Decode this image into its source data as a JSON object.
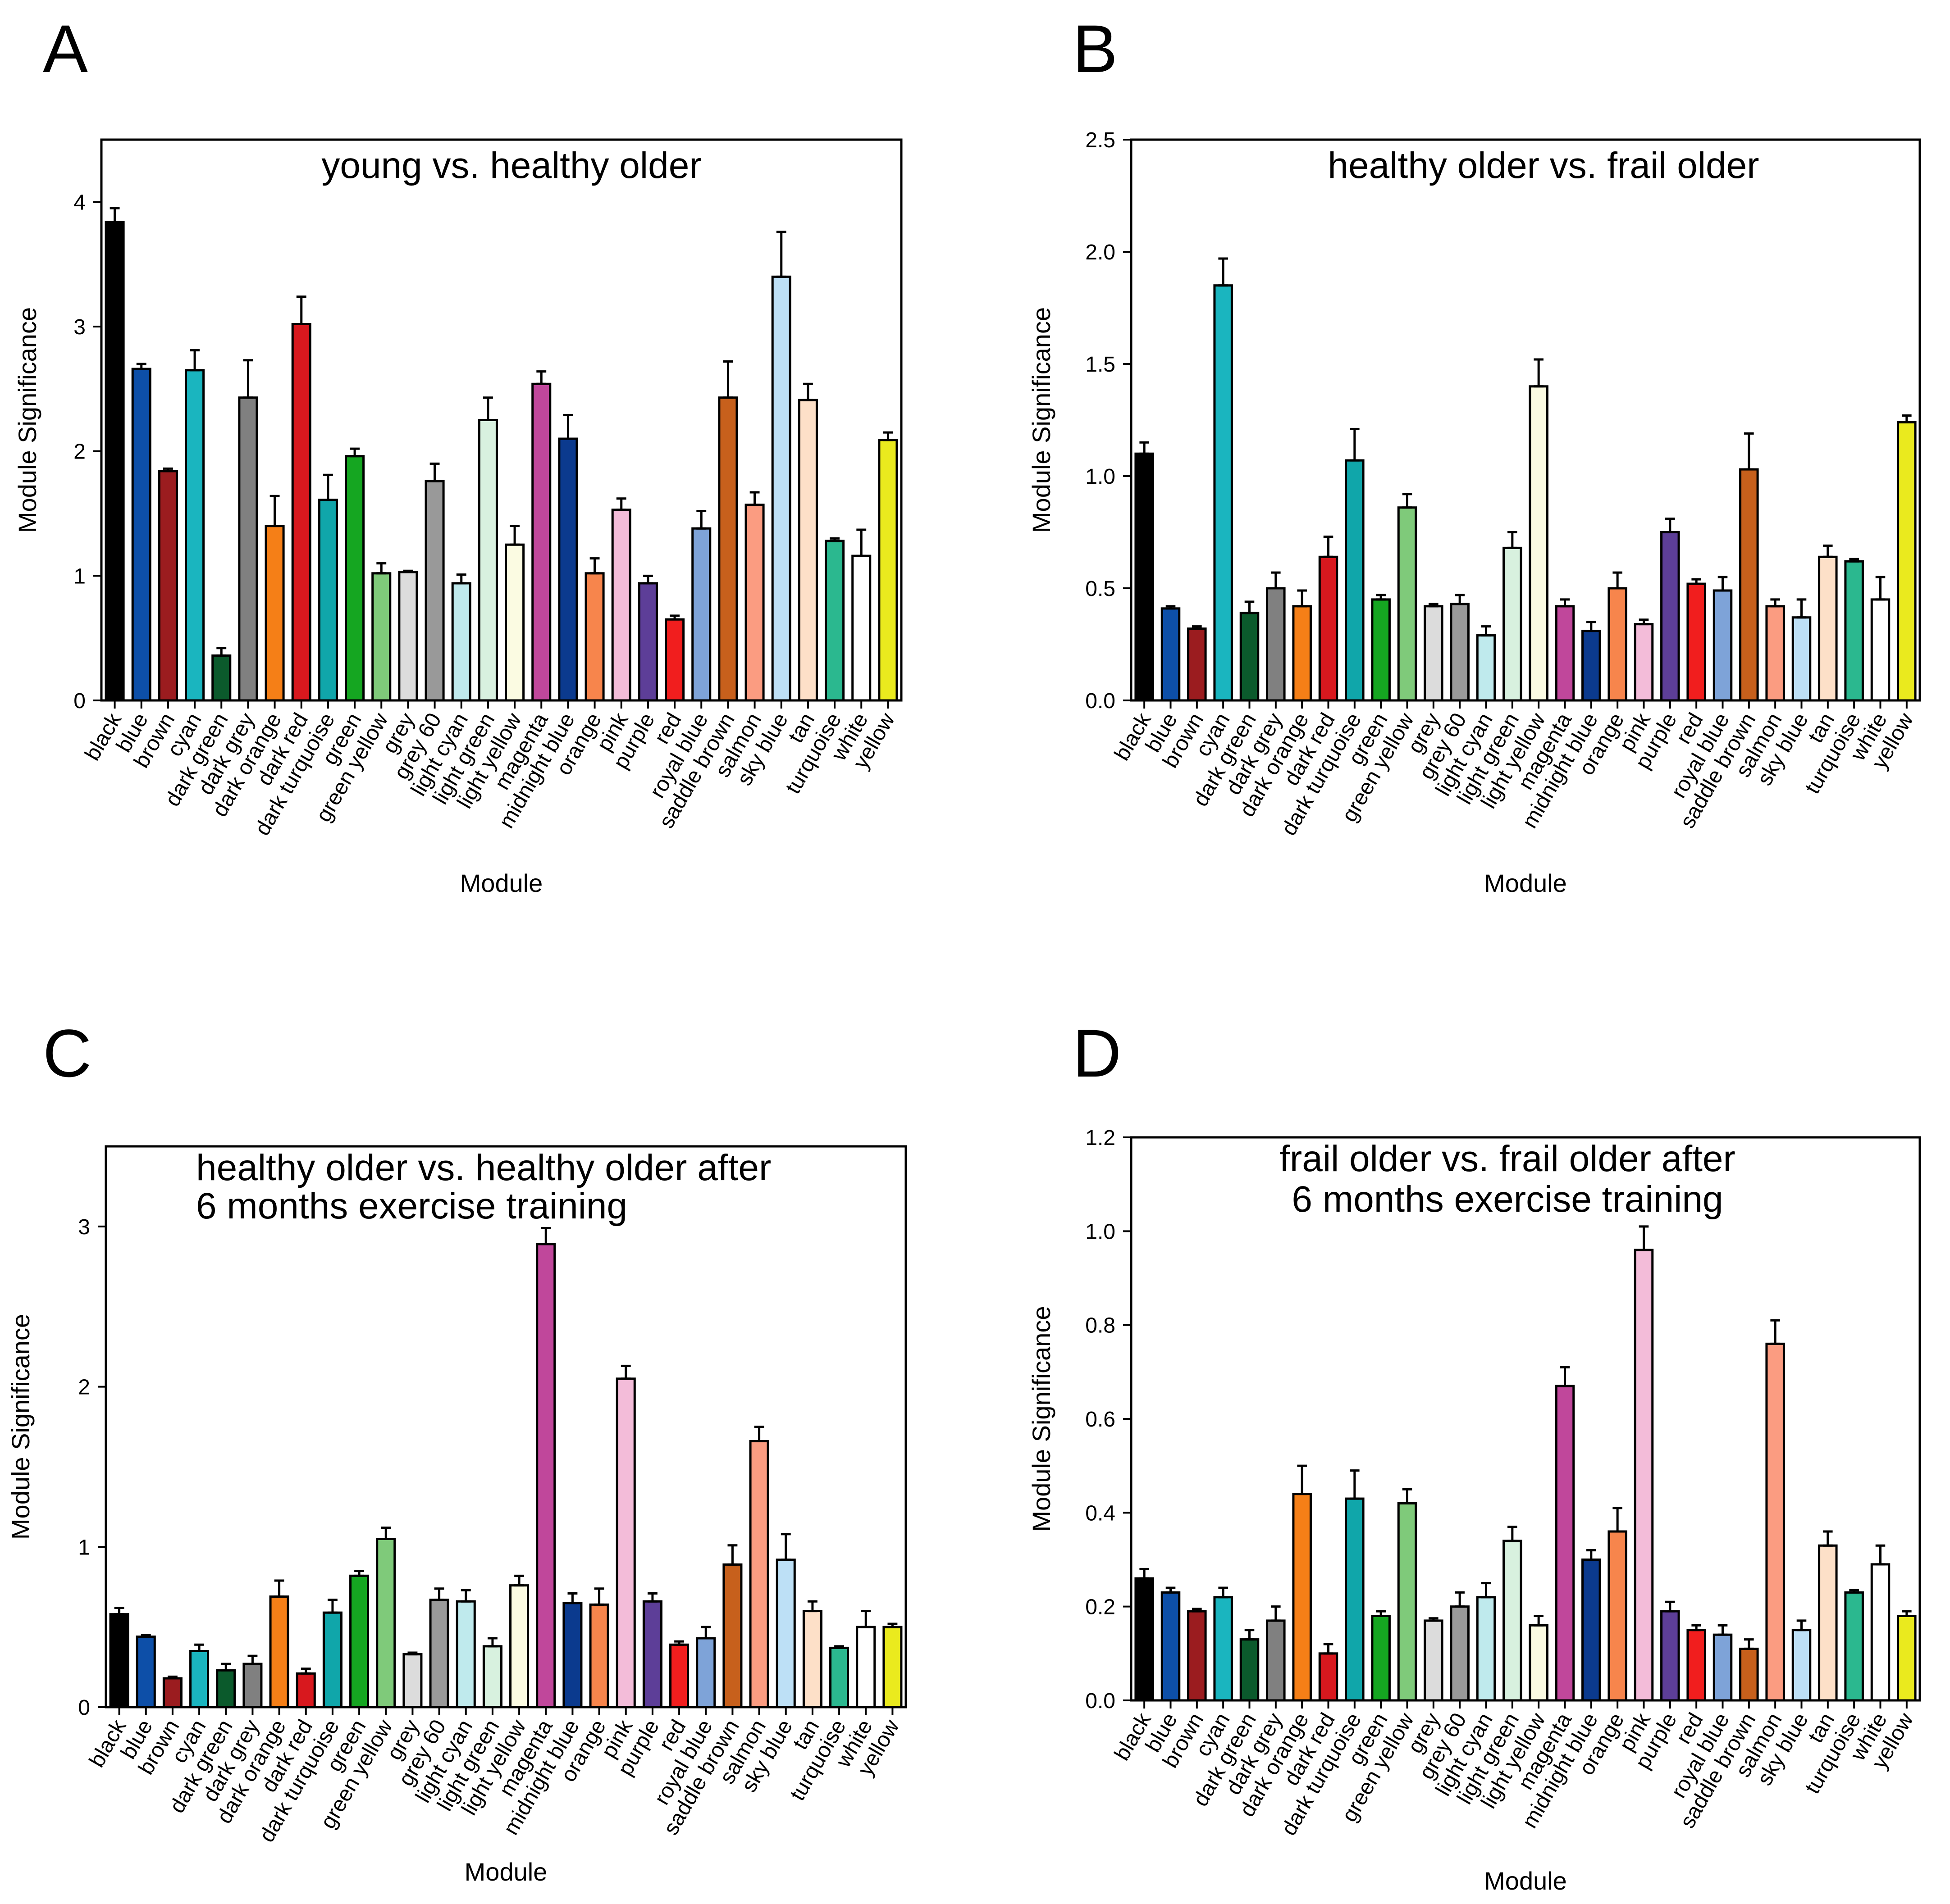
{
  "colors": {
    "black": "#000000",
    "blue": "#0d4fa8",
    "brown": "#9b1c1f",
    "cyan": "#1ab5bf",
    "dark green": "#0b5a2c",
    "dark grey": "#808080",
    "dark orange": "#f57f17",
    "dark red": "#d8181e",
    "dark turquoise": "#10a6aa",
    "green": "#15a621",
    "green yellow": "#7fca7a",
    "grey": "#dcdcdc",
    "grey 60": "#999999",
    "light cyan": "#bfeaed",
    "light green": "#d8f1df",
    "light yellow": "#fbfbe2",
    "magenta": "#c0479b",
    "midnight blue": "#0b3a8e",
    "orange": "#f7854c",
    "pink": "#f3bcd9",
    "purple": "#5d3e98",
    "red": "#f11e1e",
    "royal blue": "#7ea3d8",
    "saddle brown": "#c7601c",
    "salmon": "#fb9c81",
    "sky blue": "#bde0f6",
    "tan": "#fde0c8",
    "turquoise": "#2bb88f",
    "white": "#ffffff",
    "yellow": "#eaea1e"
  },
  "chart_data": [
    {
      "panel": "A",
      "type": "bar",
      "title": [
        "young vs. healthy older"
      ],
      "xlabel": "Module",
      "ylabel": "Module Significance",
      "ylim": [
        0,
        4.5
      ],
      "yticks": [
        "0",
        "1",
        "2",
        "3",
        "4"
      ],
      "ytick_values": [
        0,
        1,
        2,
        3,
        4
      ],
      "categories": [
        "black",
        "blue",
        "brown",
        "cyan",
        "dark green",
        "dark grey",
        "dark orange",
        "dark red",
        "dark turquoise",
        "green",
        "green yellow",
        "grey",
        "grey 60",
        "light cyan",
        "light green",
        "light yellow",
        "magenta",
        "midnight blue",
        "orange",
        "pink",
        "purple",
        "red",
        "royal blue",
        "saddle brown",
        "salmon",
        "sky blue",
        "tan",
        "turquoise",
        "white",
        "yellow"
      ],
      "values": [
        3.84,
        2.66,
        1.84,
        2.65,
        0.36,
        2.43,
        1.4,
        3.02,
        1.61,
        1.96,
        1.02,
        1.03,
        1.76,
        0.94,
        2.25,
        1.25,
        2.54,
        2.1,
        1.02,
        1.53,
        0.94,
        0.65,
        1.38,
        2.43,
        1.57,
        3.4,
        2.41,
        1.28,
        1.16,
        2.09
      ],
      "errors": [
        0.11,
        0.04,
        0.02,
        0.16,
        0.06,
        0.3,
        0.24,
        0.22,
        0.2,
        0.06,
        0.08,
        0.01,
        0.14,
        0.07,
        0.18,
        0.15,
        0.1,
        0.19,
        0.12,
        0.09,
        0.06,
        0.03,
        0.14,
        0.29,
        0.1,
        0.36,
        0.13,
        0.02,
        0.21,
        0.06
      ]
    },
    {
      "panel": "B",
      "type": "bar",
      "title": [
        "healthy older vs. frail older"
      ],
      "xlabel": "Module",
      "ylabel": "Module Significance",
      "ylim": [
        0,
        2.5
      ],
      "yticks": [
        "0.0",
        "0.5",
        "1.0",
        "1.5",
        "2.0",
        "2.5"
      ],
      "ytick_values": [
        0,
        0.5,
        1.0,
        1.5,
        2.0,
        2.5
      ],
      "categories": [
        "black",
        "blue",
        "brown",
        "cyan",
        "dark green",
        "dark grey",
        "dark orange",
        "dark red",
        "dark turquoise",
        "green",
        "green yellow",
        "grey",
        "grey 60",
        "light cyan",
        "light green",
        "light yellow",
        "magenta",
        "midnight blue",
        "orange",
        "pink",
        "purple",
        "red",
        "royal blue",
        "saddle brown",
        "salmon",
        "sky blue",
        "tan",
        "turquoise",
        "white",
        "yellow"
      ],
      "values": [
        1.1,
        0.41,
        0.32,
        1.85,
        0.39,
        0.5,
        0.42,
        0.64,
        1.07,
        0.45,
        0.86,
        0.42,
        0.43,
        0.29,
        0.68,
        1.4,
        0.42,
        0.31,
        0.5,
        0.34,
        0.75,
        0.52,
        0.49,
        1.03,
        0.42,
        0.37,
        0.64,
        0.62,
        0.45,
        1.24
      ],
      "errors": [
        0.05,
        0.01,
        0.01,
        0.12,
        0.05,
        0.07,
        0.07,
        0.09,
        0.14,
        0.02,
        0.06,
        0.01,
        0.04,
        0.04,
        0.07,
        0.12,
        0.03,
        0.04,
        0.07,
        0.02,
        0.06,
        0.02,
        0.06,
        0.16,
        0.03,
        0.08,
        0.05,
        0.01,
        0.1,
        0.03
      ]
    },
    {
      "panel": "C",
      "type": "bar",
      "title": [
        "healthy older vs. healthy older after",
        "6 months exercise training"
      ],
      "xlabel": "Module",
      "ylabel": "Module Significance",
      "ylim": [
        0,
        3.5
      ],
      "yticks": [
        "0",
        "1",
        "2",
        "3"
      ],
      "ytick_values": [
        0,
        1,
        2,
        3
      ],
      "categories": [
        "black",
        "blue",
        "brown",
        "cyan",
        "dark green",
        "dark grey",
        "dark orange",
        "dark red",
        "dark turquoise",
        "green",
        "green yellow",
        "grey",
        "grey 60",
        "light cyan",
        "light green",
        "light yellow",
        "magenta",
        "midnight blue",
        "orange",
        "pink",
        "purple",
        "red",
        "royal blue",
        "saddle brown",
        "salmon",
        "sky blue",
        "tan",
        "turquoise",
        "white",
        "yellow"
      ],
      "values": [
        0.58,
        0.44,
        0.18,
        0.35,
        0.23,
        0.27,
        0.69,
        0.21,
        0.59,
        0.82,
        1.05,
        0.33,
        0.67,
        0.66,
        0.38,
        0.76,
        2.89,
        0.65,
        0.64,
        2.05,
        0.66,
        0.39,
        0.43,
        0.89,
        1.66,
        0.92,
        0.6,
        0.37,
        0.5,
        0.5
      ],
      "errors": [
        0.04,
        0.01,
        0.01,
        0.04,
        0.04,
        0.05,
        0.1,
        0.03,
        0.08,
        0.03,
        0.07,
        0.01,
        0.07,
        0.07,
        0.05,
        0.06,
        0.1,
        0.06,
        0.1,
        0.08,
        0.05,
        0.02,
        0.07,
        0.12,
        0.09,
        0.16,
        0.06,
        0.01,
        0.1,
        0.02
      ]
    },
    {
      "panel": "D",
      "type": "bar",
      "title": [
        "frail older vs. frail older after",
        "6 months exercise training"
      ],
      "xlabel": "Module",
      "ylabel": "Module Significance",
      "ylim": [
        0,
        1.2
      ],
      "yticks": [
        "0.0",
        "0.2",
        "0.4",
        "0.6",
        "0.8",
        "1.0",
        "1.2"
      ],
      "ytick_values": [
        0,
        0.2,
        0.4,
        0.6,
        0.8,
        1.0,
        1.2
      ],
      "categories": [
        "black",
        "blue",
        "brown",
        "cyan",
        "dark green",
        "dark grey",
        "dark orange",
        "dark red",
        "dark turquoise",
        "green",
        "green yellow",
        "grey",
        "grey 60",
        "light cyan",
        "light green",
        "light yellow",
        "magenta",
        "midnight blue",
        "orange",
        "pink",
        "purple",
        "red",
        "royal blue",
        "saddle brown",
        "salmon",
        "sky blue",
        "tan",
        "turquoise",
        "white",
        "yellow"
      ],
      "values": [
        0.26,
        0.23,
        0.19,
        0.22,
        0.13,
        0.17,
        0.44,
        0.1,
        0.43,
        0.18,
        0.42,
        0.17,
        0.2,
        0.22,
        0.34,
        0.16,
        0.67,
        0.3,
        0.36,
        0.96,
        0.19,
        0.15,
        0.14,
        0.11,
        0.76,
        0.15,
        0.33,
        0.23,
        0.29,
        0.18
      ],
      "errors": [
        0.02,
        0.01,
        0.005,
        0.02,
        0.02,
        0.03,
        0.06,
        0.02,
        0.06,
        0.01,
        0.03,
        0.005,
        0.03,
        0.03,
        0.03,
        0.02,
        0.04,
        0.02,
        0.05,
        0.05,
        0.02,
        0.01,
        0.02,
        0.02,
        0.05,
        0.02,
        0.03,
        0.005,
        0.04,
        0.01
      ]
    }
  ]
}
